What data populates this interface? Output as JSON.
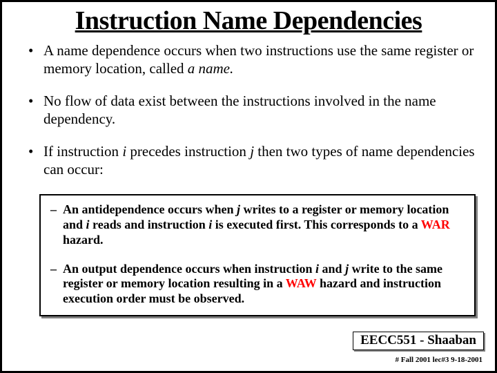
{
  "title": "Instruction Name Dependencies",
  "bullets": [
    {
      "html": "A name dependence occurs when two instructions use the same register or memory location, called <span class='ital'>a name.</span>"
    },
    {
      "html": "No flow of data exist between the instructions involved in the name dependency."
    },
    {
      "html": "If instruction <span class='ital'> i </span> precedes instruction <span class='ital'> j </span> then two types of name dependencies can occur:"
    }
  ],
  "sub_bullets": [
    {
      "html": "An antidependence occurs when <span class='ital'> j </span> writes to a register or memory location and <span class='ital'> i </span> reads and instruction <span class='ital'> i </span> is executed first. This corresponds to a <span class='red'>WAR</span> hazard."
    },
    {
      "html": "An output dependence occurs when instruction <span class='ital'> i </span> and <span class='ital'> j </span>  write to the same register or memory location resulting in a <span class='red'>WAW</span> hazard and instruction execution order must be observed."
    }
  ],
  "footer_course": "EECC551 - Shaaban",
  "footer_meta": "#  Fall 2001  lec#3   9-18-2001"
}
